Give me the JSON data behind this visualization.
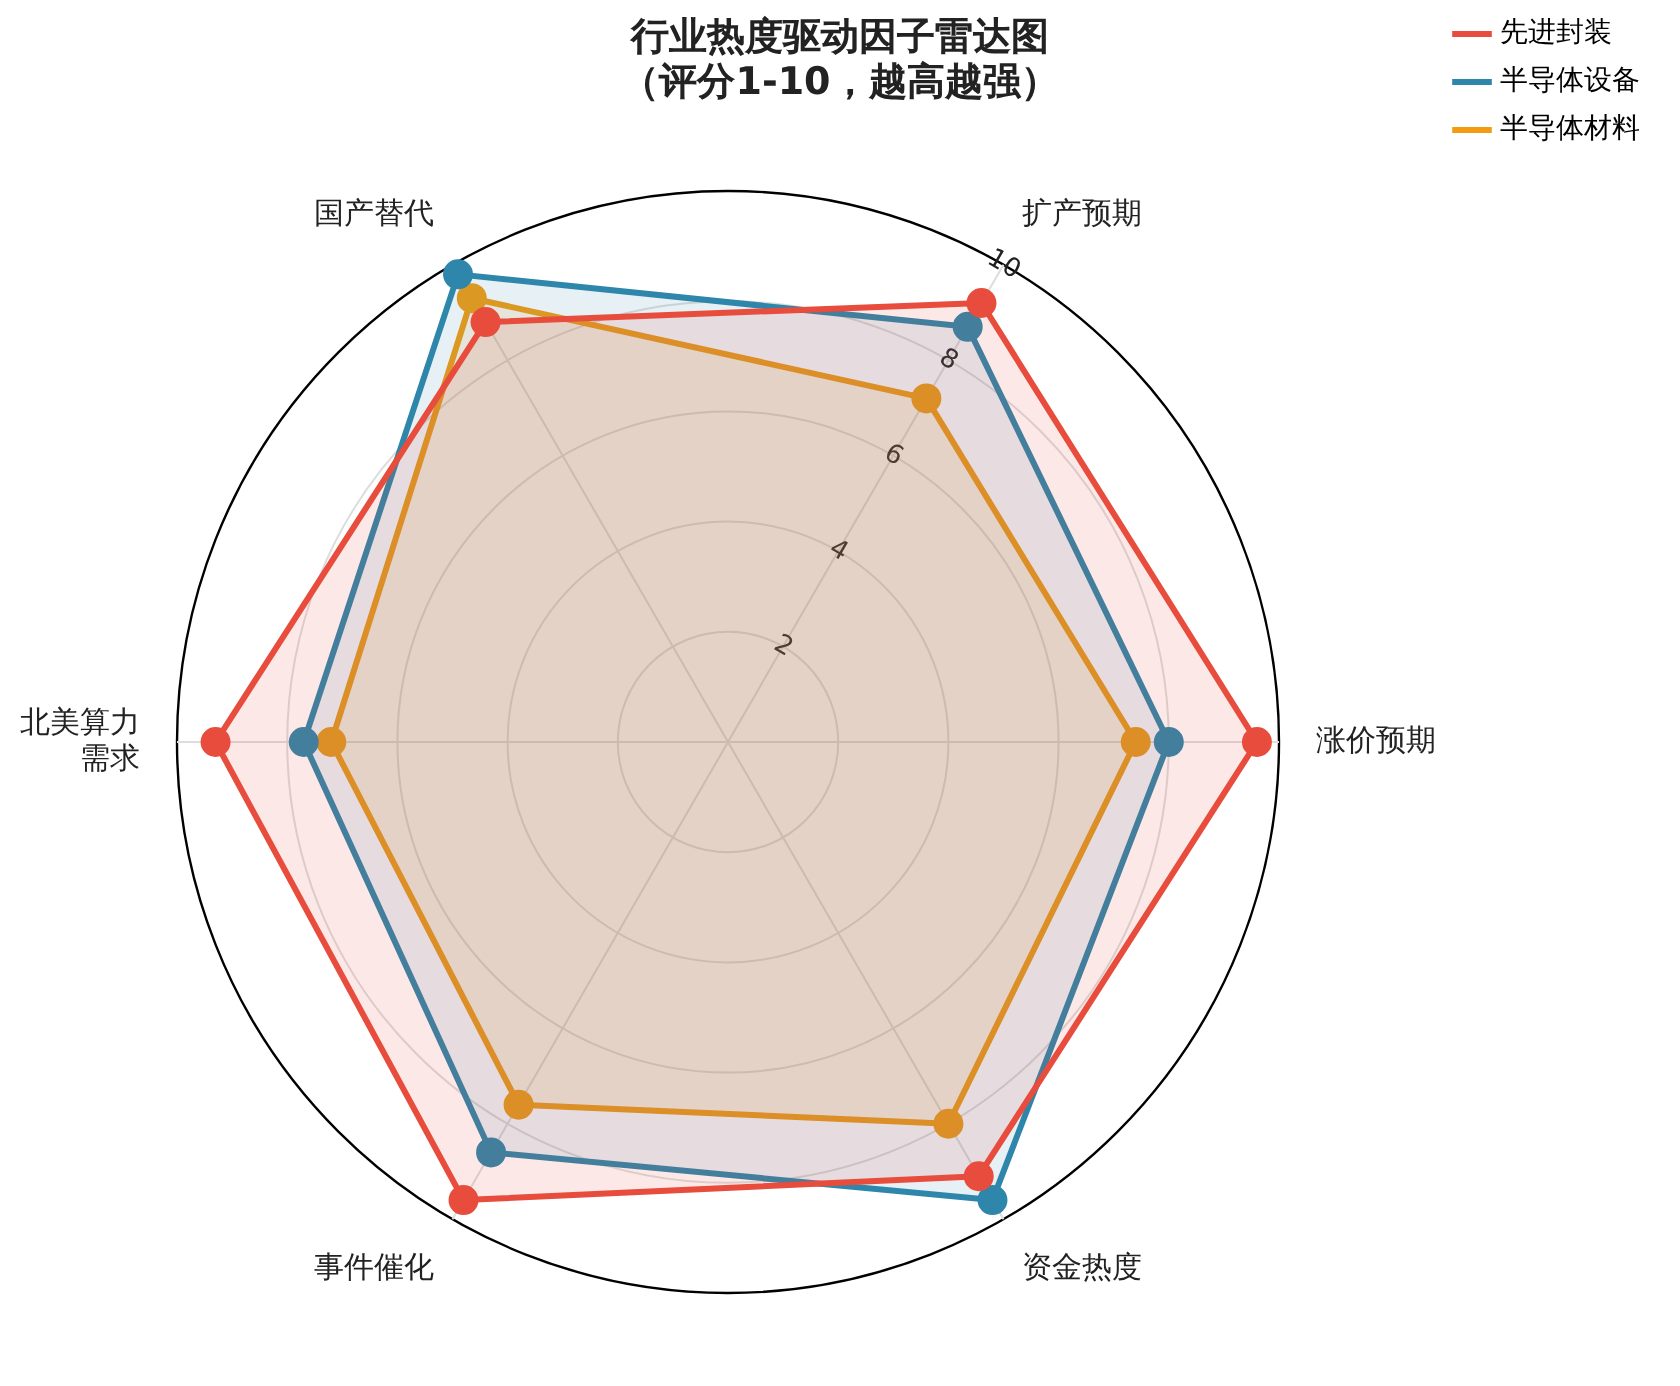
{
  "chart_data": {
    "type": "radar",
    "title": "行业热度驱动因子雷达图（评分1-10，越高越强）",
    "categories": [
      "扩产预期",
      "涨价预期",
      "资金热度",
      "事件催化",
      "北美算力需求",
      "国产替代"
    ],
    "series": [
      {
        "name": "先进封装",
        "color": "#e74c3c",
        "values": [
          9.2,
          9.6,
          9.1,
          9.6,
          9.3,
          8.8
        ]
      },
      {
        "name": "半导体设备",
        "color": "#2e86ab",
        "values": [
          8.7,
          8.0,
          9.6,
          8.6,
          7.7,
          9.8
        ]
      },
      {
        "name": "半导体材料",
        "color": "#f39c12",
        "values": [
          7.2,
          7.4,
          8.0,
          7.6,
          7.2,
          9.3
        ]
      }
    ],
    "ylim": [
      0,
      10
    ],
    "yticks": [
      2,
      4,
      6,
      8,
      10
    ],
    "grid": true,
    "legend": "top right",
    "marker": "circle",
    "line_style": "solid"
  }
}
